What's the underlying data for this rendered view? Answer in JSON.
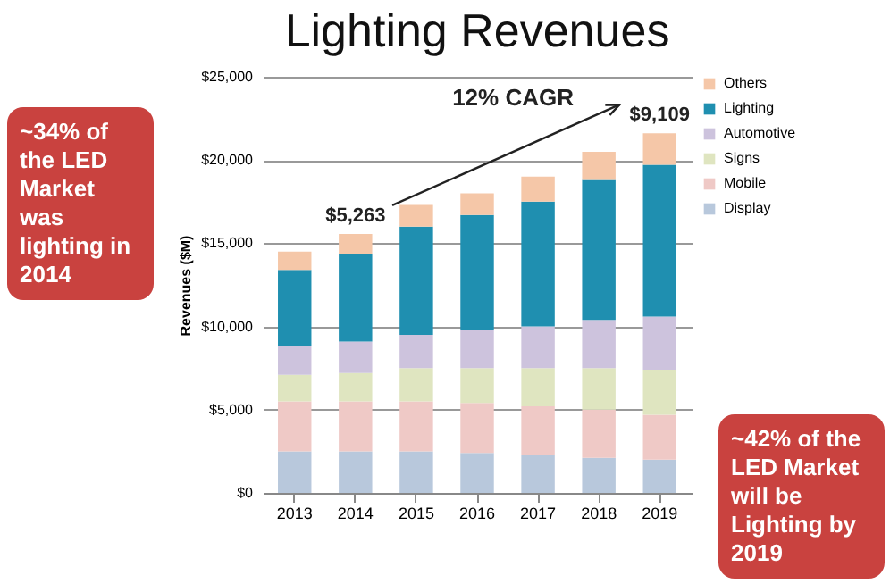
{
  "chart_data": {
    "type": "bar",
    "stacked": true,
    "title": "Lighting Revenues",
    "ylabel": "Revenues ($M)",
    "categories": [
      "2013",
      "2014",
      "2015",
      "2016",
      "2017",
      "2018",
      "2019"
    ],
    "series": [
      {
        "name": "Display",
        "color": "#b8c8dc",
        "values": [
          2500,
          2500,
          2500,
          2400,
          2300,
          2100,
          2000
        ]
      },
      {
        "name": "Mobile",
        "color": "#efc9c6",
        "values": [
          3000,
          3000,
          3000,
          3000,
          2900,
          2900,
          2700
        ]
      },
      {
        "name": "Signs",
        "color": "#dfe5c0",
        "values": [
          1600,
          1700,
          2000,
          2100,
          2300,
          2500,
          2700
        ]
      },
      {
        "name": "Automotive",
        "color": "#cdc3dd",
        "values": [
          1700,
          1900,
          2000,
          2300,
          2500,
          2900,
          3200
        ]
      },
      {
        "name": "Lighting",
        "color": "#1f8fb0",
        "values": [
          4600,
          5263,
          6500,
          6900,
          7500,
          8400,
          9109
        ],
        "value_labels": [
          null,
          "$5,263",
          null,
          null,
          null,
          null,
          "$9,109"
        ]
      },
      {
        "name": "Others",
        "color": "#f5c7a8",
        "values": [
          1100,
          1200,
          1300,
          1300,
          1500,
          1700,
          1900
        ]
      }
    ],
    "ylim": [
      0,
      25000
    ],
    "yticks": [
      {
        "value": 0,
        "label": "$0"
      },
      {
        "value": 5000,
        "label": "$5,000"
      },
      {
        "value": 10000,
        "label": "$10,000"
      },
      {
        "value": 15000,
        "label": "$15,000"
      },
      {
        "value": 20000,
        "label": "$20,000"
      },
      {
        "value": 25000,
        "label": "$25,000"
      }
    ],
    "grid": "y",
    "legend": "right",
    "annotations": [
      "12% CAGR",
      "~34% of the LED Market was lighting in 2014",
      "~42% of the LED Market will be Lighting by 2019"
    ]
  }
}
